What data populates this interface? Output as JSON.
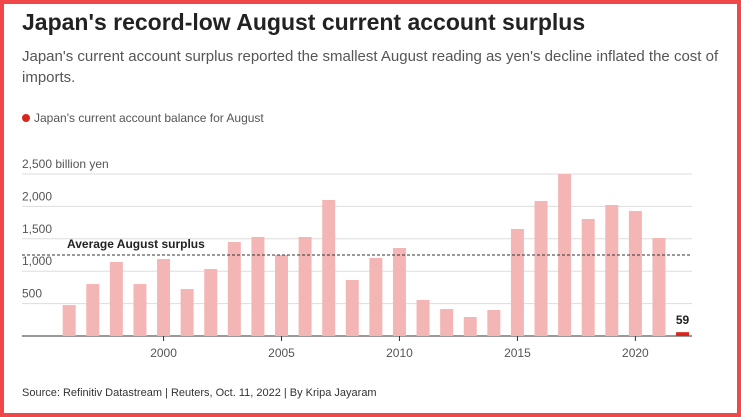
{
  "chart_data": {
    "type": "bar",
    "title": "Japan's record-low August current account surplus",
    "subtitle": "Japan's current account surplus reported the smallest August reading as yen's decline inflated the cost of imports.",
    "source": "Source: Refinitiv Datastream | Reuters, Oct. 11, 2022 | By Kripa Jayaram",
    "x": [
      1996,
      1997,
      1998,
      1999,
      2000,
      2001,
      2002,
      2003,
      2004,
      2005,
      2006,
      2007,
      2008,
      2009,
      2010,
      2011,
      2012,
      2013,
      2014,
      2015,
      2016,
      2017,
      2018,
      2019,
      2020,
      2021,
      2022
    ],
    "series": [
      {
        "name": "Japan's current account balance for August",
        "color": "#d9261c",
        "values": [
          478,
          802,
          1142,
          802,
          1188,
          725,
          1034,
          1451,
          1528,
          1250,
          1528,
          2099,
          864,
          1204,
          1358,
          556,
          417,
          293,
          401,
          1651,
          2083,
          2500,
          1806,
          2022,
          1929,
          1512,
          59
        ],
        "bar_colors": [
          "#f4b6b4",
          "#f4b6b4",
          "#f4b6b4",
          "#f4b6b4",
          "#f4b6b4",
          "#f4b6b4",
          "#f4b6b4",
          "#f4b6b4",
          "#f4b6b4",
          "#f4b6b4",
          "#f4b6b4",
          "#f4b6b4",
          "#f4b6b4",
          "#f4b6b4",
          "#f4b6b4",
          "#f4b6b4",
          "#f4b6b4",
          "#f4b6b4",
          "#f4b6b4",
          "#f4b6b4",
          "#f4b6b4",
          "#f4b6b4",
          "#f4b6b4",
          "#f4b6b4",
          "#f4b6b4",
          "#f4b6b4",
          "#d9261c"
        ]
      }
    ],
    "average": {
      "label": "Average August  surplus",
      "value": 1250
    },
    "xlim": [
      1994,
      2022.4
    ],
    "xticks": [
      2000,
      2005,
      2010,
      2015,
      2020
    ],
    "ylim": [
      0,
      2500
    ],
    "yticks": [
      500,
      {
        "value": 1000,
        "label": "1,000"
      },
      {
        "value": 1500,
        "label": "1,500"
      },
      {
        "value": 2000,
        "label": "2,000"
      },
      {
        "value": 2500,
        "label": "2,500 billion yen"
      }
    ],
    "grid": true
  }
}
